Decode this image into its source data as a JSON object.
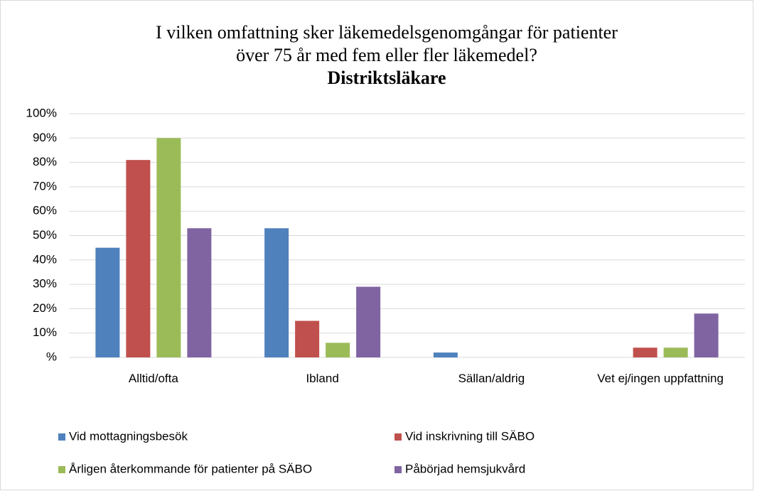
{
  "chart_data": {
    "type": "bar",
    "title": [
      "I vilken omfattning sker läkemedelsgenomgångar för patienter",
      "över 75 år med fem eller fler läkemedel?"
    ],
    "subtitle": "Distriktsläkare",
    "categories": [
      "Alltid/ofta",
      "Ibland",
      "Sällan/aldrig",
      "Vet ej/ingen uppfattning"
    ],
    "series": [
      {
        "name": "Vid mottagningsbesök",
        "color": "#4f81bd",
        "values": [
          45,
          53,
          2,
          0
        ]
      },
      {
        "name": "Vid inskrivning till SÄBO",
        "color": "#c0504d",
        "values": [
          81,
          15,
          0,
          4
        ]
      },
      {
        "name": "Årligen återkommande för patienter på SÄBO",
        "color": "#9bbb59",
        "values": [
          90,
          6,
          0,
          4
        ]
      },
      {
        "name": "Påbörjad hemsjukvård",
        "color": "#8064a2",
        "values": [
          53,
          29,
          0,
          18
        ]
      }
    ],
    "ylim": [
      0,
      100
    ],
    "yticks": [
      {
        "value": 0,
        "label": "%"
      },
      {
        "value": 10,
        "label": "10%"
      },
      {
        "value": 20,
        "label": "20%"
      },
      {
        "value": 30,
        "label": "30%"
      },
      {
        "value": 40,
        "label": "40%"
      },
      {
        "value": 50,
        "label": "50%"
      },
      {
        "value": 60,
        "label": "60%"
      },
      {
        "value": 70,
        "label": "70%"
      },
      {
        "value": 80,
        "label": "80%"
      },
      {
        "value": 90,
        "label": "90%"
      },
      {
        "value": 100,
        "label": "100%"
      }
    ],
    "grid": true,
    "legend": "bottom"
  }
}
